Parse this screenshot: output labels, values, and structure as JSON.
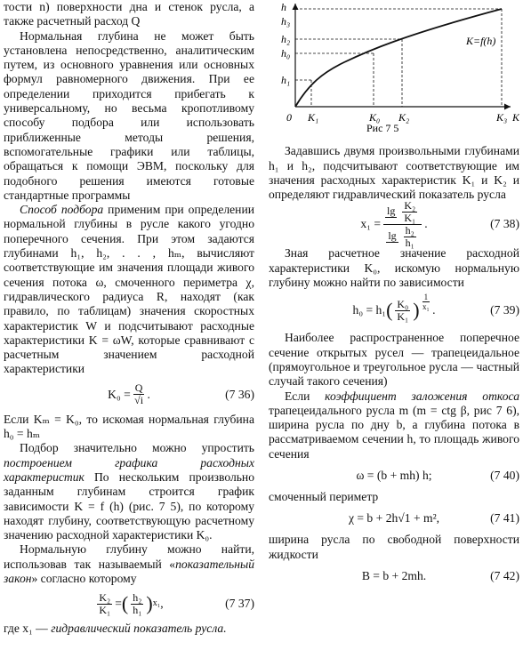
{
  "left": {
    "p1": "тости n) поверхности дна и стенок русла, а также расчетный расход Q",
    "p2": "Нормальная глубина не может быть установлена непосредственно, аналитическим путем, из основного уравнения или основных формул равномерного движения. При ее определении приходится прибегать к универсальному, но весьма кропотливому способу подбора или использовать приближенные методы решения, вспомогательные графики или таблицы, обращаться к помощи ЭВМ, поскольку для подобного решения имеются готовые стандартные программы",
    "p3": [
      "Способ подбора",
      " применим при определении нормальной глубины в русле какого угодно поперечного сечения. При этом задаются глубинами h₁, h₂, . . , hₘ, вычисляют соответствующие им значения площади живого сечения потока ω, смоченного периметра χ, гидравлического радиуса R, находят (как правило, по таблицам) значения скоростных характеристик W и подсчитывают расходные характеристики K = ωW, которые сравнивают с расчетным значением расходной характеристики"
    ],
    "eq736": {
      "lhs": "K₀ =",
      "num": "Q",
      "den": "√i",
      "tail": ".",
      "number": "(7 36)"
    },
    "p4": "Если Kₘ = K₀, то искомая нормальная глубина h₀ = hₘ",
    "p5": [
      "Подбор значительно можно упростить ",
      "построением графика расходных характеристик",
      " По нескольким произвольно заданным глубинам строится график зависимости K = f (h) (рис. 7 5), по которому находят глубину, соответствующую расчетному значению расходной характеристики K₀."
    ],
    "p6": [
      "Нормальную глубину можно найти, использовав так называемый «",
      "показательный закон",
      "» согласно которому"
    ],
    "eq737": {
      "lnum": "K₂",
      "lden": "K₁",
      "eq": "=",
      "rnum": "h₂",
      "rden": "h₁",
      "exp": "x₁",
      "tail": ",",
      "number": "(7 37)"
    },
    "p7": [
      "где x₁ — ",
      "гидравлический показатель русла."
    ]
  },
  "figure": {
    "y_axis": "h",
    "x_axis": "K",
    "origin": "0",
    "h3": "h₃",
    "h2": "h₂",
    "h0": "h₀",
    "h1": "h₁",
    "k1": "K₁",
    "k0": "K₀",
    "k2": "K₂",
    "k3": "K₃",
    "curve": "K=f(h)",
    "caption": "Рис 7 5"
  },
  "right": {
    "p1": "Задавшись двумя произвольными глубинами h₁ и h₂, подсчитывают соответствующие им значения расходных характеристик K₁ и K₂ и определяют гидравлический показатель русла",
    "eq738": {
      "lhs": "x₁ =",
      "lg1": "lg",
      "n1": "K₂",
      "d1": "K₁",
      "lg2": "lg",
      "n2": "h₂",
      "d2": "h₁",
      "tail": ".",
      "number": "(7 38)"
    },
    "p2": "Зная расчетное значение расходной характеристики K₀, искомую нормальную глубину можно найти по зависимости",
    "eq739": {
      "lhs": "h₀ = h₁",
      "num": "K₀",
      "den": "K₁",
      "enum": "1",
      "eden": "x₁",
      "tail": ".",
      "number": "(7 39)"
    },
    "p3": "Наиболее распространенное поперечное сечение открытых русел — трапецеидальное (прямоугольное и треугольное русла — частный случай такого сечения)",
    "p4": [
      "Если ",
      "коэффициент заложения откоса",
      " трапецеидального русла m (m = ctg β, рис 7 6), ширина русла по дну b, а глубина потока в рассматриваемом сечении h, то площадь живого сечения"
    ],
    "eq740": {
      "expr": "ω = (b + mh) h;",
      "number": "(7 40)"
    },
    "p5": "смоченный периметр",
    "eq741": {
      "expr": "χ = b + 2h√1 + m²,",
      "number": "(7 41)"
    },
    "p6": "ширина русла по свободной поверхности жидкости",
    "eq742": {
      "expr": "B = b + 2mh.",
      "number": "(7 42)"
    }
  }
}
